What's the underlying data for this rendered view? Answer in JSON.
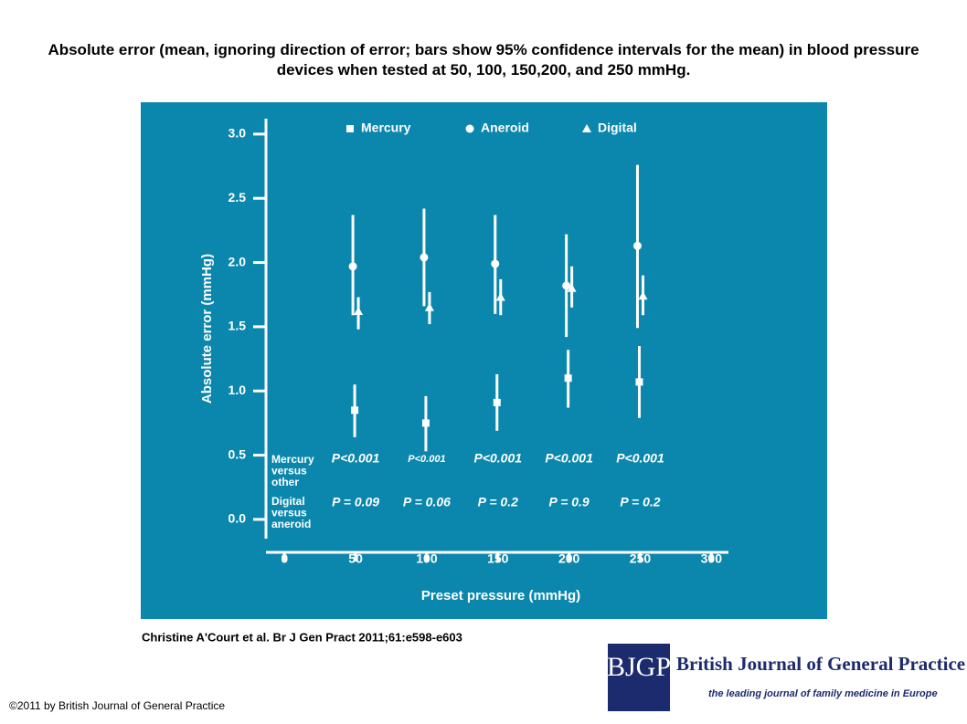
{
  "chart_data": {
    "type": "scatter",
    "title": "Absolute error (mean, ignoring direction of error; bars show 95% confidence intervals for the mean) in blood pressure devices when tested at 50, 100, 150,200, and 250 mmHg.",
    "x_label": "Preset pressure (mmHg)",
    "y_label": "Absolute error (mmHg)",
    "x": [
      50,
      100,
      150,
      200,
      250
    ],
    "series": [
      {
        "name": "Mercury",
        "color": "#ffffff",
        "marker": "square",
        "values": [
          0.85,
          0.75,
          0.91,
          1.1,
          1.07
        ],
        "lower": [
          0.64,
          0.53,
          0.69,
          0.87,
          0.79
        ],
        "upper": [
          1.05,
          0.96,
          1.13,
          1.32,
          1.35
        ]
      },
      {
        "name": "Aneroid",
        "color": "#ffffff",
        "marker": "circle",
        "values": [
          1.97,
          2.04,
          1.99,
          1.82,
          2.13
        ],
        "lower": [
          1.59,
          1.66,
          1.6,
          1.42,
          1.49
        ],
        "upper": [
          2.37,
          2.42,
          2.37,
          2.22,
          2.76
        ]
      },
      {
        "name": "Digital",
        "color": "#ffffff",
        "marker": "triangle",
        "values": [
          1.62,
          1.65,
          1.73,
          1.8,
          1.74
        ],
        "lower": [
          1.48,
          1.52,
          1.59,
          1.65,
          1.59
        ],
        "upper": [
          1.73,
          1.77,
          1.87,
          1.97,
          1.9
        ]
      }
    ],
    "comparisons": [
      {
        "label": [
          "Mercury",
          "versus",
          "other"
        ],
        "p_values": [
          "P<0.001",
          "P<0.001",
          "P<0.001",
          "P<0.001",
          "P<0.001"
        ]
      },
      {
        "label": [
          "Digital",
          "versus",
          "aneroid"
        ],
        "p_values": [
          "P = 0.09",
          "P = 0.06",
          "P = 0.2",
          "P = 0.9",
          "P = 0.2"
        ]
      }
    ],
    "xlim": [
      -13,
      312
    ],
    "xticks": [
      0,
      50,
      100,
      150,
      200,
      250,
      300
    ],
    "ylim": [
      -0.15,
      3.12
    ],
    "yticks": [
      {
        "value": 0,
        "label": "0.0"
      },
      0.5,
      {
        "value": 1,
        "label": "1.0"
      },
      1.5,
      {
        "value": 2,
        "label": "2.0"
      },
      2.5,
      {
        "value": 3,
        "label": "3.0"
      }
    ],
    "legend": "top",
    "background": "#0b87ad"
  },
  "citation": "Christine A'Court et al. Br J Gen Pract 2011;61:e598-e603",
  "copyright": "©2011 by British Journal of General Practice",
  "logo": {
    "mark": "BJGP",
    "name": "British Journal of General Practice",
    "tagline": "the leading journal of family medicine in Europe"
  }
}
